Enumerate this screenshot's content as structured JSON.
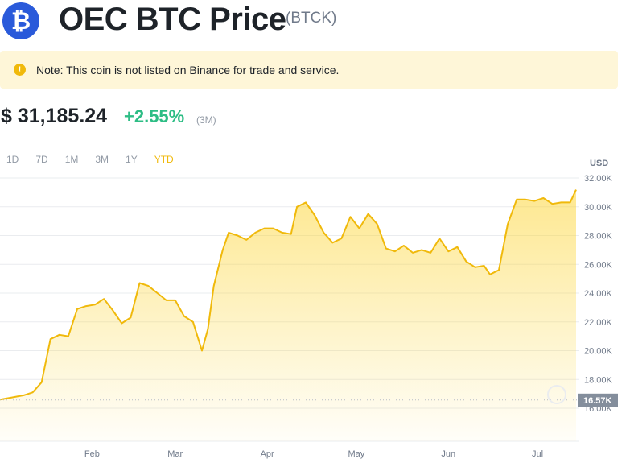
{
  "header": {
    "logo_glyph": "₿",
    "title": "OEC BTC Price",
    "symbol": "(BTCK)"
  },
  "note": {
    "icon": "exclamation-icon",
    "text": "Note: This coin is not listed on Binance for trade and service."
  },
  "price": {
    "value": "$ 31,185.24",
    "change": "+2.55%",
    "period": "(3M)"
  },
  "ranges": [
    "1D",
    "7D",
    "1M",
    "3M",
    "1Y",
    "YTD"
  ],
  "active_range": "YTD",
  "colors": {
    "accent": "#f0b90b",
    "positive": "#2ebd85",
    "line": "#f0b90b",
    "note_bg": "#fef6d8",
    "logo": "#2a5ada"
  },
  "chart_data": {
    "type": "area",
    "currency_label": "USD",
    "y_ticks": [
      "32.00K",
      "30.00K",
      "28.00K",
      "26.00K",
      "24.00K",
      "22.00K",
      "20.00K",
      "18.00K",
      "16.00K"
    ],
    "x_ticks": [
      "Feb",
      "Mar",
      "Apr",
      "May",
      "Jun",
      "Jul"
    ],
    "ylim": [
      16000,
      32000
    ],
    "baseline_label": "16.57K",
    "baseline_value": 16570,
    "grid": true,
    "x": [
      "2023-01-01",
      "2023-01-05",
      "2023-01-09",
      "2023-01-12",
      "2023-01-15",
      "2023-01-18",
      "2023-01-21",
      "2023-01-24",
      "2023-01-27",
      "2023-01-30",
      "2023-02-02",
      "2023-02-05",
      "2023-02-08",
      "2023-02-11",
      "2023-02-14",
      "2023-02-17",
      "2023-02-20",
      "2023-02-23",
      "2023-02-26",
      "2023-03-01",
      "2023-03-04",
      "2023-03-07",
      "2023-03-10",
      "2023-03-12",
      "2023-03-14",
      "2023-03-17",
      "2023-03-19",
      "2023-03-22",
      "2023-03-25",
      "2023-03-28",
      "2023-03-31",
      "2023-04-03",
      "2023-04-06",
      "2023-04-09",
      "2023-04-11",
      "2023-04-14",
      "2023-04-17",
      "2023-04-20",
      "2023-04-23",
      "2023-04-26",
      "2023-04-29",
      "2023-05-02",
      "2023-05-05",
      "2023-05-08",
      "2023-05-11",
      "2023-05-14",
      "2023-05-17",
      "2023-05-20",
      "2023-05-23",
      "2023-05-26",
      "2023-05-29",
      "2023-06-01",
      "2023-06-04",
      "2023-06-07",
      "2023-06-10",
      "2023-06-13",
      "2023-06-15",
      "2023-06-18",
      "2023-06-21",
      "2023-06-24",
      "2023-06-27",
      "2023-06-30",
      "2023-07-03",
      "2023-07-06",
      "2023-07-09",
      "2023-07-12",
      "2023-07-14"
    ],
    "values": [
      16600,
      16750,
      16900,
      17100,
      17800,
      20800,
      21100,
      21000,
      22900,
      23100,
      23200,
      23600,
      22800,
      21900,
      22300,
      24700,
      24500,
      24000,
      23500,
      23500,
      22400,
      22000,
      20000,
      21500,
      24500,
      27000,
      28200,
      28000,
      27700,
      28200,
      28500,
      28500,
      28200,
      28100,
      30000,
      30300,
      29400,
      28200,
      27500,
      27800,
      29300,
      28500,
      29500,
      28800,
      27100,
      26900,
      27300,
      26800,
      27000,
      26800,
      27800,
      26900,
      27200,
      26200,
      25800,
      25900,
      25300,
      25600,
      28800,
      30500,
      30500,
      30400,
      30600,
      30200,
      30300,
      30300,
      31185
    ]
  }
}
